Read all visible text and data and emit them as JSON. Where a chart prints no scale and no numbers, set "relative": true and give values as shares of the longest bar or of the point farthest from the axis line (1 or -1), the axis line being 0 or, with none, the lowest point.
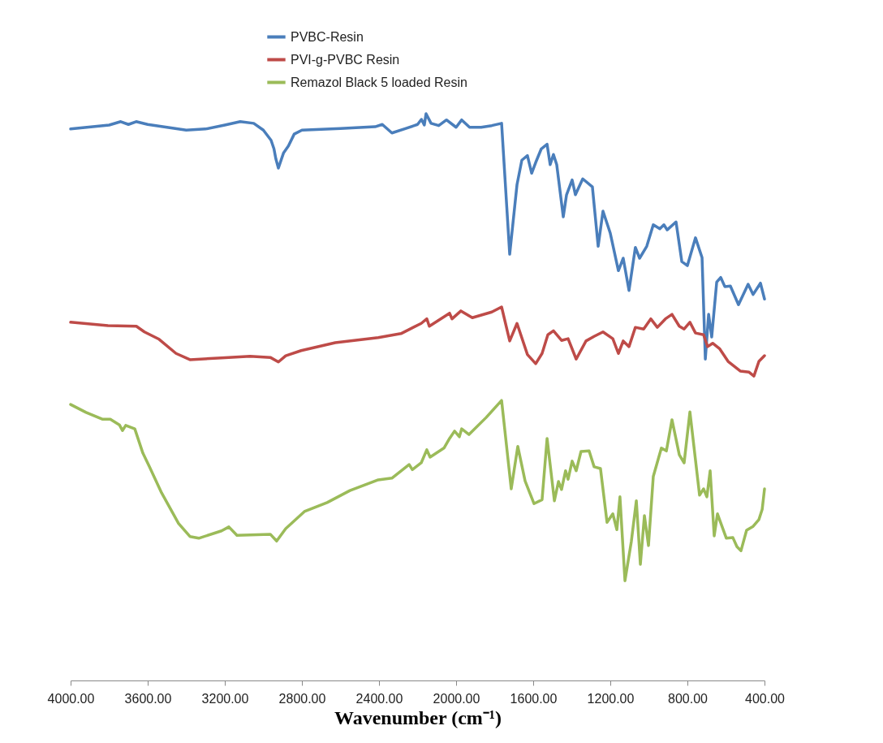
{
  "chart_data": {
    "type": "line",
    "relative": true,
    "xlabel": "Wavenumber (cm⁻¹)",
    "xlim": [
      4000,
      400
    ],
    "xticks": [
      {
        "value": 4000,
        "label": "4000.00"
      },
      {
        "value": 3600,
        "label": "3600.00"
      },
      {
        "value": 3200,
        "label": "3200.00"
      },
      {
        "value": 2800,
        "label": "2800.00"
      },
      {
        "value": 2400,
        "label": "2400.00"
      },
      {
        "value": 2000,
        "label": "2000.00"
      },
      {
        "value": 1600,
        "label": "1600.00"
      },
      {
        "value": 1200,
        "label": "1200.00"
      },
      {
        "value": 800,
        "label": "800.00"
      },
      {
        "value": 400,
        "label": "400.00"
      }
    ],
    "legend": "top",
    "grid": false,
    "series": [
      {
        "name": "PVBC-Resin",
        "color": "#4a7ebb",
        "x": [
          4000,
          3800,
          3740,
          3700,
          3660,
          3600,
          3500,
          3400,
          3300,
          3200,
          3120,
          3050,
          3000,
          2960,
          2945,
          2935,
          2922,
          2895,
          2870,
          2840,
          2800,
          2600,
          2420,
          2383,
          2333,
          2260,
          2200,
          2180,
          2165,
          2156,
          2130,
          2090,
          2050,
          2000,
          1971,
          1930,
          1870,
          1815,
          1764,
          1722,
          1684,
          1659,
          1630,
          1608,
          1587,
          1558,
          1528,
          1512,
          1495,
          1478,
          1444,
          1427,
          1398,
          1381,
          1343,
          1293,
          1263,
          1238,
          1200,
          1158,
          1133,
          1103,
          1070,
          1048,
          1011,
          977,
          943,
          922,
          905,
          859,
          829,
          800,
          758,
          724,
          707,
          690,
          674,
          648,
          627,
          606,
          577,
          535,
          485,
          459,
          421,
          400
        ],
        "values": [
          0.973,
          0.98,
          0.986,
          0.981,
          0.986,
          0.981,
          0.976,
          0.971,
          0.973,
          0.98,
          0.986,
          0.983,
          0.971,
          0.953,
          0.938,
          0.92,
          0.904,
          0.931,
          0.943,
          0.964,
          0.971,
          0.974,
          0.977,
          0.981,
          0.966,
          0.974,
          0.981,
          0.99,
          0.98,
          1.0,
          0.983,
          0.979,
          0.989,
          0.976,
          0.989,
          0.976,
          0.976,
          0.979,
          0.983,
          0.752,
          0.875,
          0.918,
          0.926,
          0.895,
          0.914,
          0.938,
          0.946,
          0.91,
          0.928,
          0.91,
          0.818,
          0.857,
          0.883,
          0.857,
          0.885,
          0.871,
          0.766,
          0.828,
          0.789,
          0.723,
          0.745,
          0.688,
          0.764,
          0.745,
          0.766,
          0.804,
          0.797,
          0.804,
          0.795,
          0.809,
          0.739,
          0.732,
          0.781,
          0.746,
          0.567,
          0.646,
          0.606,
          0.703,
          0.711,
          0.695,
          0.696,
          0.663,
          0.699,
          0.681,
          0.701,
          0.673
        ]
      },
      {
        "name": "PVI-g-PVBC Resin",
        "color": "#be4b48",
        "x": [
          4000,
          3806,
          3659,
          3617,
          3541,
          3453,
          3381,
          3217,
          3069,
          2964,
          2922,
          2884,
          2804,
          2627,
          2404,
          2286,
          2181,
          2152,
          2139,
          2034,
          2021,
          1975,
          1916,
          1815,
          1764,
          1722,
          1684,
          1630,
          1587,
          1554,
          1524,
          1495,
          1453,
          1419,
          1377,
          1326,
          1284,
          1238,
          1187,
          1158,
          1133,
          1103,
          1070,
          1027,
          990,
          956,
          914,
          880,
          842,
          817,
          787,
          758,
          716,
          695,
          669,
          632,
          589,
          526,
          480,
          455,
          429,
          400
        ],
        "values": [
          0.632,
          0.626,
          0.625,
          0.615,
          0.602,
          0.577,
          0.566,
          0.569,
          0.572,
          0.57,
          0.562,
          0.573,
          0.582,
          0.596,
          0.605,
          0.612,
          0.63,
          0.638,
          0.625,
          0.648,
          0.638,
          0.652,
          0.64,
          0.65,
          0.659,
          0.599,
          0.63,
          0.575,
          0.559,
          0.577,
          0.61,
          0.617,
          0.6,
          0.603,
          0.567,
          0.599,
          0.607,
          0.615,
          0.603,
          0.577,
          0.599,
          0.589,
          0.623,
          0.62,
          0.638,
          0.623,
          0.638,
          0.646,
          0.625,
          0.62,
          0.632,
          0.613,
          0.61,
          0.589,
          0.595,
          0.585,
          0.563,
          0.546,
          0.544,
          0.537,
          0.563,
          0.573
        ]
      },
      {
        "name": "Remazol Black 5 loaded Resin",
        "color": "#9bbb59",
        "x": [
          4000,
          3920,
          3836,
          3794,
          3747,
          3731,
          3714,
          3667,
          3625,
          3592,
          3528,
          3440,
          3381,
          3335,
          3217,
          3179,
          3137,
          2964,
          2931,
          2884,
          2787,
          2669,
          2551,
          2404,
          2333,
          2244,
          2227,
          2181,
          2152,
          2135,
          2063,
          2034,
          2008,
          1983,
          1971,
          1933,
          1844,
          1764,
          1714,
          1680,
          1642,
          1596,
          1554,
          1528,
          1490,
          1469,
          1453,
          1432,
          1419,
          1398,
          1377,
          1352,
          1310,
          1284,
          1251,
          1217,
          1187,
          1166,
          1150,
          1124,
          1091,
          1065,
          1044,
          1023,
          1002,
          977,
          935,
          909,
          880,
          842,
          817,
          787,
          737,
          716,
          699,
          682,
          661,
          644,
          598,
          564,
          543,
          522,
          493,
          459,
          429,
          412,
          400
        ],
        "values": [
          0.487,
          0.473,
          0.461,
          0.461,
          0.451,
          0.441,
          0.45,
          0.444,
          0.401,
          0.378,
          0.331,
          0.277,
          0.254,
          0.251,
          0.264,
          0.271,
          0.256,
          0.258,
          0.246,
          0.268,
          0.298,
          0.314,
          0.335,
          0.354,
          0.357,
          0.381,
          0.372,
          0.384,
          0.407,
          0.394,
          0.41,
          0.427,
          0.44,
          0.43,
          0.444,
          0.434,
          0.464,
          0.494,
          0.338,
          0.413,
          0.352,
          0.312,
          0.319,
          0.427,
          0.317,
          0.351,
          0.337,
          0.37,
          0.355,
          0.387,
          0.37,
          0.404,
          0.405,
          0.377,
          0.374,
          0.279,
          0.294,
          0.266,
          0.324,
          0.176,
          0.245,
          0.317,
          0.205,
          0.291,
          0.238,
          0.36,
          0.41,
          0.405,
          0.46,
          0.398,
          0.384,
          0.474,
          0.327,
          0.338,
          0.324,
          0.37,
          0.255,
          0.294,
          0.251,
          0.252,
          0.236,
          0.229,
          0.265,
          0.272,
          0.284,
          0.302,
          0.338
        ]
      }
    ]
  }
}
